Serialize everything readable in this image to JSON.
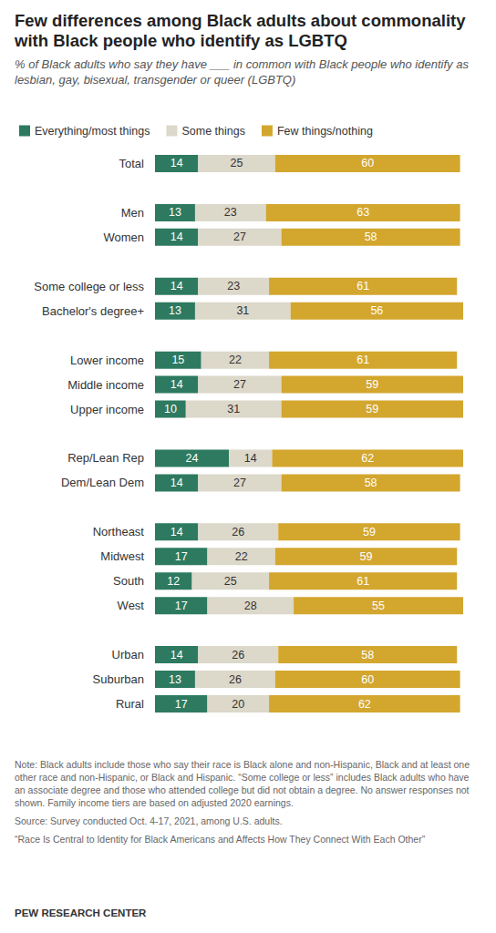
{
  "chart_data": {
    "type": "bar",
    "title": "Few differences among Black adults about commonality with Black people who identify as LGBTQ",
    "subtitle": "% of Black adults who say they have ___ in common with Black people who identify as lesbian, gay, bisexual, transgender or queer (LGBTQ)",
    "categories": [
      "Total",
      null,
      "Men",
      "Women",
      null,
      "Some college or less",
      "Bachelor's degree+",
      null,
      "Lower income",
      "Middle income",
      "Upper income",
      null,
      "Rep/Lean Rep",
      "Dem/Lean Dem",
      null,
      "Northeast",
      "Midwest",
      "South",
      "West",
      null,
      "Urban",
      "Suburban",
      "Rural"
    ],
    "series": [
      {
        "name": "Everything/most things",
        "color": "#2d7a60",
        "values": [
          14,
          null,
          13,
          14,
          null,
          14,
          13,
          null,
          15,
          14,
          10,
          null,
          24,
          14,
          null,
          14,
          17,
          12,
          17,
          null,
          14,
          13,
          17
        ]
      },
      {
        "name": "Some things",
        "color": "#dcd8ca",
        "values": [
          25,
          null,
          23,
          27,
          null,
          23,
          31,
          null,
          22,
          27,
          31,
          null,
          14,
          27,
          null,
          26,
          22,
          25,
          28,
          null,
          26,
          26,
          20
        ]
      },
      {
        "name": "Few things/nothing",
        "color": "#d3a62e",
        "values": [
          60,
          null,
          63,
          58,
          null,
          61,
          56,
          null,
          61,
          59,
          59,
          null,
          62,
          58,
          null,
          59,
          59,
          61,
          55,
          null,
          58,
          60,
          62
        ]
      }
    ],
    "xlim": [
      0,
      100
    ],
    "orientation": "horizontal",
    "stacked": true,
    "data_labels": true,
    "tick_labels": "y",
    "grid": false,
    "legend": "top",
    "notes": [
      "Note: Black adults include those who say their race is Black alone and non-Hispanic, Black and at least one other race and non-Hispanic, or Black and Hispanic. “Some college or less” includes Black adults who have an associate degree and those who attended college but did not obtain a degree. No answer responses not shown. Family income tiers are based on adjusted 2020 earnings.",
      "Source: Survey conducted Oct. 4-17, 2021, among U.S. adults.",
      "“Race Is Central to Identity for Black Americans and Affects How They Connect With Each Other”"
    ],
    "credit": "PEW RESEARCH CENTER"
  }
}
